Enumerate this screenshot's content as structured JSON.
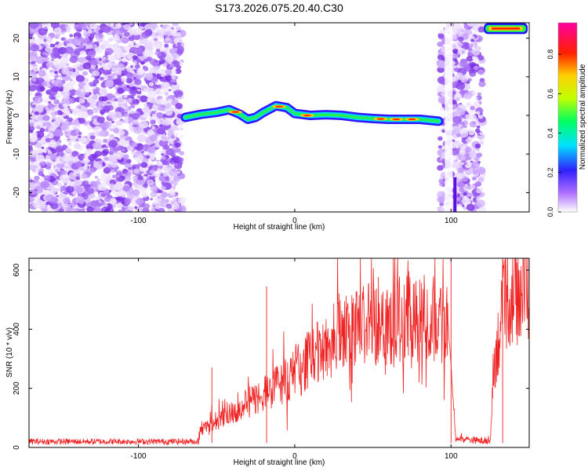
{
  "title": "S173.2026.075.20.40.C30",
  "chart_data": [
    {
      "type": "heatmap",
      "name": "spectrogram",
      "xlabel": "Height of straight line (km)",
      "ylabel": "Frequency (Hz)",
      "xlim": [
        -170,
        150
      ],
      "ylim": [
        -25,
        24
      ],
      "xticks": [
        -100,
        0,
        100
      ],
      "yticks": [
        -20,
        -10,
        0,
        10,
        20
      ],
      "colorbar": {
        "label": "Normalized spectral amplitude",
        "range": [
          0,
          0.96
        ],
        "ticks": [
          0.0,
          0.2,
          0.4,
          0.6,
          0.8
        ]
      },
      "noise_regions": [
        [
          -170,
          -72
        ],
        [
          93,
          120
        ]
      ],
      "tone_track": [
        {
          "x": -70,
          "y": -0.5
        },
        {
          "x": -60,
          "y": 0.3
        },
        {
          "x": -50,
          "y": 0.8
        },
        {
          "x": -42,
          "y": 1.5
        },
        {
          "x": -35,
          "y": 0.3
        },
        {
          "x": -30,
          "y": -1.0
        },
        {
          "x": -25,
          "y": -0.5
        },
        {
          "x": -20,
          "y": 0.8
        },
        {
          "x": -12,
          "y": 2.5
        },
        {
          "x": -5,
          "y": 2.0
        },
        {
          "x": 0,
          "y": 0.5
        },
        {
          "x": 10,
          "y": 0.0
        },
        {
          "x": 20,
          "y": 0.2
        },
        {
          "x": 30,
          "y": 0.0
        },
        {
          "x": 40,
          "y": -0.5
        },
        {
          "x": 50,
          "y": -0.8
        },
        {
          "x": 60,
          "y": -1.0
        },
        {
          "x": 70,
          "y": -1.0
        },
        {
          "x": 80,
          "y": -1.0
        },
        {
          "x": 92,
          "y": -1.5
        }
      ],
      "high_tone": {
        "x_start": 122,
        "x_end": 148,
        "y": 22.5
      }
    },
    {
      "type": "line",
      "name": "snr",
      "xlabel": "Height of straight line (km)",
      "ylabel": "SNR (10 * v/v)",
      "xlim": [
        -170,
        150
      ],
      "ylim": [
        0,
        640
      ],
      "xticks": [
        -100,
        0,
        100
      ],
      "yticks": [
        0,
        200,
        400,
        600
      ],
      "color": "#ee2222",
      "envelope": [
        {
          "x": -170,
          "y": 20
        },
        {
          "x": -62,
          "y": 20
        },
        {
          "x": -60,
          "y": 60
        },
        {
          "x": -40,
          "y": 120
        },
        {
          "x": -20,
          "y": 180
        },
        {
          "x": 0,
          "y": 250
        },
        {
          "x": 20,
          "y": 340
        },
        {
          "x": 40,
          "y": 410
        },
        {
          "x": 60,
          "y": 430
        },
        {
          "x": 80,
          "y": 430
        },
        {
          "x": 98,
          "y": 430
        },
        {
          "x": 103,
          "y": 30
        },
        {
          "x": 125,
          "y": 20
        },
        {
          "x": 128,
          "y": 300
        },
        {
          "x": 135,
          "y": 500
        },
        {
          "x": 150,
          "y": 540
        }
      ]
    }
  ]
}
